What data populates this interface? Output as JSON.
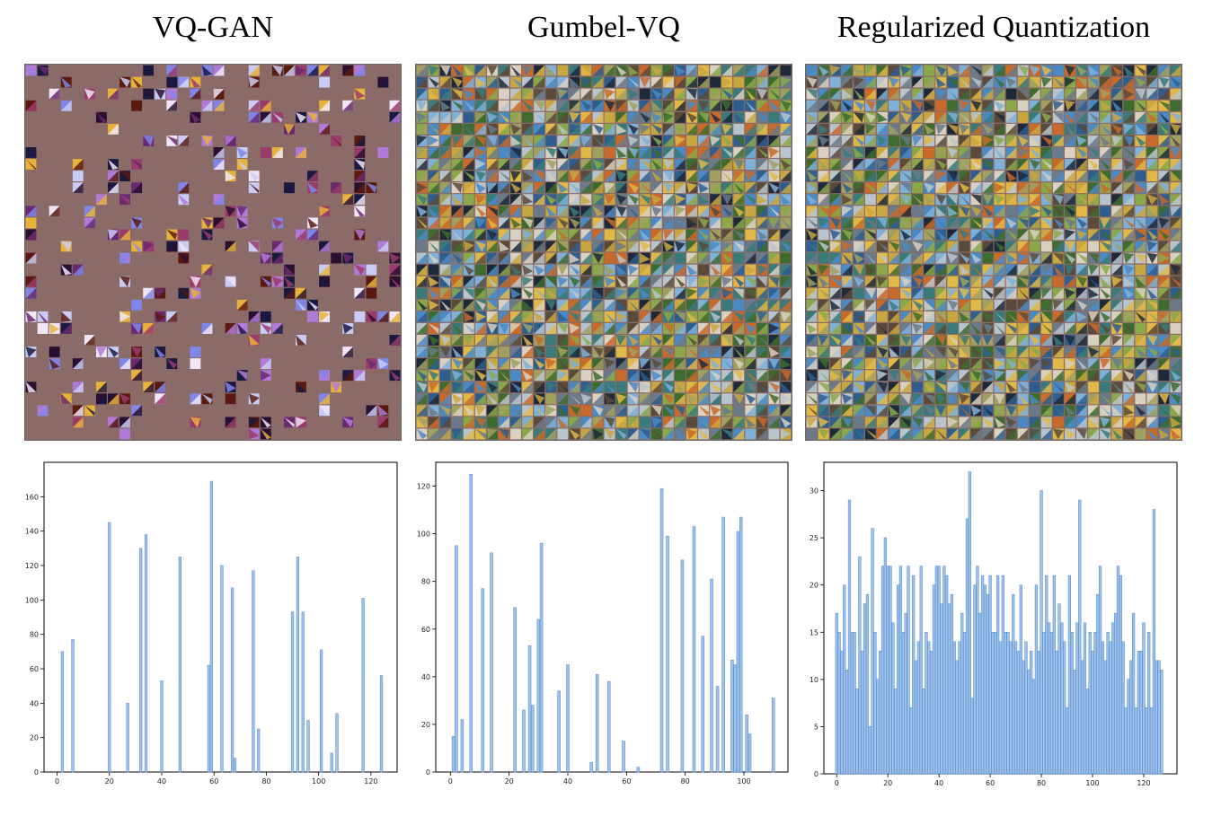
{
  "panels": [
    {
      "title": "VQ-GAN",
      "grid_fill": 0.28,
      "grid_style": "sparse"
    },
    {
      "title": "Gumbel-VQ",
      "grid_fill": 1.0,
      "grid_style": "dense"
    },
    {
      "title": "Regularized Quantization",
      "grid_fill": 1.0,
      "grid_style": "dense"
    }
  ],
  "colors": {
    "bar_fill": "#9fc3ea",
    "bar_edge": "#5b8fcf",
    "unused_code": "#8a6b68"
  },
  "chart_data": [
    {
      "type": "bar",
      "title": "VQ-GAN",
      "xlim": [
        -5,
        130
      ],
      "ylim": [
        0,
        180
      ],
      "xticks": [
        0,
        20,
        40,
        60,
        80,
        100,
        120
      ],
      "yticks": [
        0,
        20,
        40,
        60,
        80,
        100,
        120,
        140,
        160
      ],
      "bars": [
        [
          2,
          70
        ],
        [
          6,
          77
        ],
        [
          20,
          145
        ],
        [
          27,
          40
        ],
        [
          32,
          130
        ],
        [
          34,
          138
        ],
        [
          40,
          53
        ],
        [
          47,
          125
        ],
        [
          58,
          62
        ],
        [
          59,
          169
        ],
        [
          63,
          120
        ],
        [
          67,
          107
        ],
        [
          68,
          8
        ],
        [
          75,
          117
        ],
        [
          77,
          25
        ],
        [
          90,
          93
        ],
        [
          92,
          125
        ],
        [
          94,
          93
        ],
        [
          96,
          30
        ],
        [
          101,
          71
        ],
        [
          105,
          11
        ],
        [
          107,
          34
        ],
        [
          117,
          101
        ],
        [
          124,
          56
        ]
      ]
    },
    {
      "type": "bar",
      "title": "Gumbel-VQ",
      "xlim": [
        -5,
        115
      ],
      "ylim": [
        0,
        130
      ],
      "xticks": [
        0,
        20,
        40,
        60,
        80,
        100
      ],
      "yticks": [
        0,
        20,
        40,
        60,
        80,
        100,
        120
      ],
      "bars": [
        [
          1,
          15
        ],
        [
          2,
          95
        ],
        [
          4,
          22
        ],
        [
          7,
          125
        ],
        [
          11,
          77
        ],
        [
          14,
          92
        ],
        [
          22,
          69
        ],
        [
          25,
          26
        ],
        [
          27,
          53
        ],
        [
          28,
          28
        ],
        [
          30,
          64
        ],
        [
          31,
          96
        ],
        [
          37,
          34
        ],
        [
          40,
          45
        ],
        [
          48,
          4
        ],
        [
          50,
          41
        ],
        [
          54,
          38
        ],
        [
          59,
          13
        ],
        [
          64,
          2
        ],
        [
          72,
          119
        ],
        [
          74,
          99
        ],
        [
          79,
          89
        ],
        [
          83,
          103
        ],
        [
          86,
          57
        ],
        [
          89,
          81
        ],
        [
          91,
          36
        ],
        [
          93,
          107
        ],
        [
          96,
          47
        ],
        [
          97,
          45
        ],
        [
          98,
          101
        ],
        [
          99,
          107
        ],
        [
          101,
          24
        ],
        [
          102,
          16
        ],
        [
          110,
          31
        ]
      ]
    },
    {
      "type": "bar",
      "title": "Regularized Quantization",
      "xlim": [
        -5,
        133
      ],
      "ylim": [
        0,
        33
      ],
      "xticks": [
        0,
        20,
        40,
        60,
        80,
        100,
        120
      ],
      "yticks": [
        0,
        5,
        10,
        15,
        20,
        25,
        30
      ],
      "values": [
        17,
        15,
        13,
        20,
        11,
        29,
        15,
        15,
        9,
        23,
        13,
        18,
        19,
        5,
        26,
        15,
        10,
        13,
        22,
        25,
        22,
        22,
        16,
        9,
        20,
        22,
        15,
        17,
        22,
        7,
        21,
        12,
        14,
        22,
        9,
        15,
        14,
        13,
        20,
        22,
        22,
        18,
        22,
        21,
        18,
        19,
        14,
        12,
        14,
        17,
        15,
        27,
        32,
        8,
        20,
        22,
        17,
        21,
        20,
        19,
        21,
        15,
        15,
        21,
        14,
        21,
        15,
        15,
        14,
        19,
        14,
        13,
        20,
        12,
        14,
        11,
        13,
        10,
        20,
        13,
        30,
        15,
        21,
        16,
        15,
        21,
        13,
        18,
        16,
        14,
        7,
        21,
        15,
        11,
        16,
        29,
        12,
        16,
        9,
        15,
        13,
        15,
        19,
        22,
        14,
        12,
        15,
        14,
        16,
        17,
        22,
        21,
        14,
        7,
        10,
        12,
        17,
        7,
        13,
        13,
        16,
        7,
        15,
        7,
        28,
        12,
        12,
        11
      ]
    }
  ]
}
